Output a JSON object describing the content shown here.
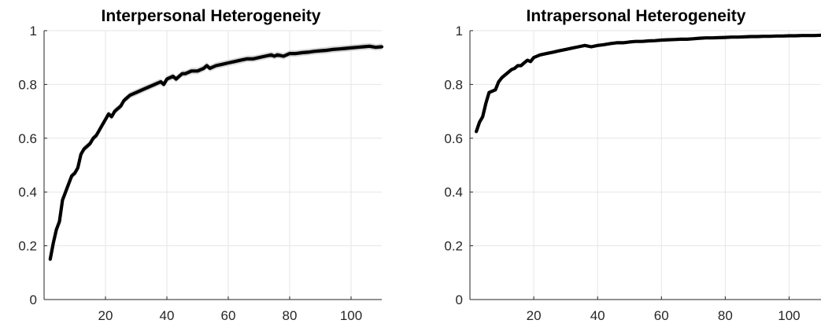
{
  "chart_data": [
    {
      "type": "line",
      "title": "Interpersonal Heterogeneity",
      "xlabel": "",
      "ylabel": "",
      "xlim": [
        0,
        110
      ],
      "ylim": [
        0,
        1
      ],
      "xticks": [
        20,
        40,
        60,
        80,
        100
      ],
      "yticks": [
        0,
        0.2,
        0.4,
        0.6,
        0.8,
        1
      ],
      "grid": true,
      "color": "#000000",
      "band_color": "#b4b4b4",
      "band_halfwidth": 0.012,
      "series": [
        {
          "x": [
            2,
            3,
            4,
            5,
            6,
            7,
            8,
            9,
            10,
            11,
            12,
            13,
            14,
            15,
            16,
            17,
            18,
            19,
            20,
            21,
            22,
            23,
            24,
            25,
            26,
            27,
            28,
            30,
            32,
            34,
            36,
            38,
            39,
            40,
            42,
            43,
            44,
            45,
            46,
            48,
            50,
            52,
            53,
            54,
            56,
            58,
            60,
            62,
            64,
            66,
            68,
            70,
            72,
            74,
            75,
            76,
            78,
            79,
            80,
            82,
            84,
            86,
            88,
            90,
            92,
            94,
            96,
            98,
            100,
            102,
            104,
            106,
            108,
            110
          ],
          "y": [
            0.15,
            0.21,
            0.26,
            0.29,
            0.37,
            0.4,
            0.43,
            0.46,
            0.47,
            0.49,
            0.54,
            0.56,
            0.57,
            0.58,
            0.6,
            0.61,
            0.63,
            0.65,
            0.67,
            0.69,
            0.68,
            0.7,
            0.71,
            0.72,
            0.74,
            0.75,
            0.76,
            0.77,
            0.78,
            0.79,
            0.8,
            0.81,
            0.8,
            0.82,
            0.83,
            0.82,
            0.83,
            0.84,
            0.84,
            0.85,
            0.85,
            0.86,
            0.87,
            0.86,
            0.87,
            0.875,
            0.88,
            0.885,
            0.89,
            0.895,
            0.895,
            0.9,
            0.905,
            0.91,
            0.905,
            0.91,
            0.905,
            0.91,
            0.915,
            0.915,
            0.918,
            0.92,
            0.923,
            0.925,
            0.927,
            0.93,
            0.932,
            0.934,
            0.936,
            0.938,
            0.94,
            0.942,
            0.938,
            0.94
          ]
        }
      ]
    },
    {
      "type": "line",
      "title": "Intrapersonal Heterogeneity",
      "xlabel": "",
      "ylabel": "",
      "xlim": [
        0,
        110
      ],
      "ylim": [
        0,
        1
      ],
      "xticks": [
        20,
        40,
        60,
        80,
        100
      ],
      "yticks": [
        0,
        0.2,
        0.4,
        0.6,
        0.8,
        1
      ],
      "grid": true,
      "color": "#000000",
      "band_color": "#b4b4b4",
      "band_halfwidth": 0.004,
      "series": [
        {
          "x": [
            2,
            3,
            4,
            5,
            6,
            7,
            8,
            9,
            10,
            11,
            12,
            13,
            14,
            15,
            16,
            17,
            18,
            19,
            20,
            21,
            22,
            24,
            26,
            28,
            30,
            32,
            34,
            36,
            38,
            40,
            42,
            44,
            46,
            48,
            50,
            52,
            54,
            56,
            58,
            60,
            62,
            64,
            66,
            68,
            70,
            72,
            74,
            76,
            78,
            80,
            82,
            84,
            86,
            88,
            90,
            92,
            94,
            96,
            98,
            100,
            102,
            104,
            106,
            108,
            110
          ],
          "y": [
            0.625,
            0.66,
            0.68,
            0.73,
            0.77,
            0.775,
            0.78,
            0.81,
            0.825,
            0.835,
            0.845,
            0.855,
            0.86,
            0.87,
            0.87,
            0.88,
            0.89,
            0.885,
            0.9,
            0.905,
            0.91,
            0.915,
            0.92,
            0.925,
            0.93,
            0.935,
            0.94,
            0.945,
            0.94,
            0.945,
            0.948,
            0.952,
            0.955,
            0.955,
            0.958,
            0.96,
            0.96,
            0.962,
            0.963,
            0.965,
            0.966,
            0.967,
            0.968,
            0.968,
            0.97,
            0.972,
            0.973,
            0.973,
            0.974,
            0.975,
            0.976,
            0.976,
            0.977,
            0.978,
            0.978,
            0.979,
            0.979,
            0.98,
            0.98,
            0.981,
            0.981,
            0.982,
            0.982,
            0.982,
            0.983
          ]
        }
      ]
    }
  ]
}
